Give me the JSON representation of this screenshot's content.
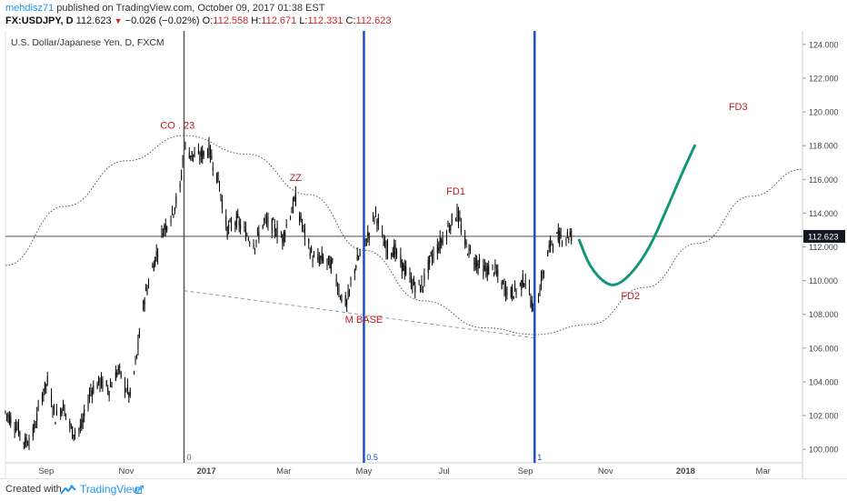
{
  "header": {
    "author": "mehdisz71",
    "published_text": "published on TradingView.com, October 09, 2017 01:38 EST",
    "symbol": "FX:USDJPY, D",
    "last_price": "112.623",
    "down_icon": "triangle-down-icon",
    "change": "−0.026 (−0.02%)",
    "ohlc": [
      {
        "label": "O:",
        "value": "112.558"
      },
      {
        "label": "H:",
        "value": "112.671"
      },
      {
        "label": "L:",
        "value": "112.331"
      },
      {
        "label": "C:",
        "value": "112.623"
      }
    ]
  },
  "footer": {
    "created_with": "Created with",
    "logo_icon": "tradingview-logo-icon",
    "brand": "TradingView",
    "external_icon": "external-link-icon"
  },
  "colors": {
    "candle": "#000000",
    "vline_blue": "#1e50c8",
    "vline_gray": "#555555",
    "annotation": "#b71c1c",
    "projection": "#14967a",
    "author": "#2196f3",
    "last_price_bg": "#131722"
  },
  "chart_data": {
    "type": "candlestick",
    "title": "U.S. Dollar/Japanese Yen, D, FXCM",
    "x_axis": {
      "tick_labels": [
        "Sep",
        "Nov",
        "2017",
        "Mar",
        "May",
        "Jul",
        "Sep",
        "Nov",
        "2018",
        "Mar"
      ],
      "range": [
        "2016-08-01",
        "2018-03-31"
      ]
    },
    "y_axis": {
      "range": [
        99.2,
        124.8
      ],
      "ticks": [
        100,
        102,
        104,
        106,
        108,
        110,
        112,
        114,
        116,
        118,
        120,
        122,
        124
      ],
      "tick_labels": [
        "100.000",
        "102.000",
        "104.000",
        "106.000",
        "108.000",
        "110.000",
        "112.000",
        "114.000",
        "116.000",
        "118.000",
        "120.000",
        "122.000",
        "124.000"
      ],
      "position": "right"
    },
    "last_price": 112.623,
    "price_path": [
      [
        "2016-08-01",
        102.2
      ],
      [
        "2016-08-05",
        101.8
      ],
      [
        "2016-08-10",
        101.3
      ],
      [
        "2016-08-16",
        100.4
      ],
      [
        "2016-08-22",
        100.9
      ],
      [
        "2016-08-29",
        103.2
      ],
      [
        "2016-09-02",
        104.0
      ],
      [
        "2016-09-08",
        101.9
      ],
      [
        "2016-09-14",
        102.6
      ],
      [
        "2016-09-21",
        101.0
      ],
      [
        "2016-09-28",
        101.3
      ],
      [
        "2016-10-05",
        103.5
      ],
      [
        "2016-10-12",
        104.0
      ],
      [
        "2016-10-19",
        103.6
      ],
      [
        "2016-10-26",
        104.7
      ],
      [
        "2016-11-04",
        103.1
      ],
      [
        "2016-11-09",
        105.5
      ],
      [
        "2016-11-15",
        109.0
      ],
      [
        "2016-11-22",
        111.0
      ],
      [
        "2016-11-29",
        113.0
      ],
      [
        "2016-12-06",
        114.0
      ],
      [
        "2016-12-12",
        115.4
      ],
      [
        "2016-12-15",
        118.0
      ],
      [
        "2016-12-20",
        117.5
      ],
      [
        "2016-12-26",
        117.3
      ],
      [
        "2017-01-03",
        117.8
      ],
      [
        "2017-01-10",
        116.0
      ],
      [
        "2017-01-17",
        113.0
      ],
      [
        "2017-01-24",
        113.6
      ],
      [
        "2017-01-31",
        112.8
      ],
      [
        "2017-02-07",
        112.2
      ],
      [
        "2017-02-14",
        113.5
      ],
      [
        "2017-02-21",
        113.2
      ],
      [
        "2017-02-28",
        112.5
      ],
      [
        "2017-03-06",
        114.0
      ],
      [
        "2017-03-10",
        114.8
      ],
      [
        "2017-03-17",
        112.7
      ],
      [
        "2017-03-24",
        111.2
      ],
      [
        "2017-03-31",
        111.3
      ],
      [
        "2017-04-07",
        110.9
      ],
      [
        "2017-04-13",
        109.2
      ],
      [
        "2017-04-18",
        108.6
      ],
      [
        "2017-04-25",
        111.0
      ],
      [
        "2017-05-02",
        112.2
      ],
      [
        "2017-05-10",
        114.0
      ],
      [
        "2017-05-17",
        112.0
      ],
      [
        "2017-05-24",
        111.8
      ],
      [
        "2017-05-31",
        110.8
      ],
      [
        "2017-06-07",
        109.8
      ],
      [
        "2017-06-14",
        109.6
      ],
      [
        "2017-06-21",
        111.3
      ],
      [
        "2017-06-28",
        112.2
      ],
      [
        "2017-07-06",
        113.4
      ],
      [
        "2017-07-11",
        114.0
      ],
      [
        "2017-07-18",
        112.0
      ],
      [
        "2017-07-25",
        111.2
      ],
      [
        "2017-08-01",
        110.6
      ],
      [
        "2017-08-08",
        110.7
      ],
      [
        "2017-08-14",
        109.8
      ],
      [
        "2017-08-21",
        109.2
      ],
      [
        "2017-08-28",
        109.7
      ],
      [
        "2017-09-01",
        110.2
      ],
      [
        "2017-09-08",
        107.9
      ],
      [
        "2017-09-14",
        110.3
      ],
      [
        "2017-09-21",
        112.4
      ],
      [
        "2017-09-28",
        112.6
      ],
      [
        "2017-10-04",
        112.7
      ],
      [
        "2017-10-09",
        112.62
      ]
    ],
    "vertical_lines": [
      {
        "date": "2016-12-15",
        "label": "0",
        "color": "gray"
      },
      {
        "date": "2017-05-01",
        "label": "0.5",
        "color": "blue"
      },
      {
        "date": "2017-09-08",
        "label": "1",
        "color": "blue"
      }
    ],
    "dotted_curve": [
      [
        "2016-08-01",
        110.9
      ],
      [
        "2016-09-15",
        114.4
      ],
      [
        "2016-11-01",
        117.1
      ],
      [
        "2016-12-15",
        118.6
      ],
      [
        "2017-02-01",
        117.5
      ],
      [
        "2017-03-20",
        115.1
      ],
      [
        "2017-05-01",
        111.8
      ],
      [
        "2017-06-15",
        108.8
      ],
      [
        "2017-08-01",
        107.2
      ],
      [
        "2017-09-08",
        106.8
      ],
      [
        "2017-10-20",
        107.4
      ],
      [
        "2017-12-01",
        109.6
      ],
      [
        "2018-01-10",
        112.2
      ],
      [
        "2018-02-20",
        115.0
      ],
      [
        "2018-03-31",
        116.6
      ]
    ],
    "dashed_line": [
      [
        "2016-12-15",
        109.4
      ],
      [
        "2017-09-08",
        106.6
      ]
    ],
    "projection_curve": [
      [
        "2017-10-12",
        112.4
      ],
      [
        "2017-10-20",
        110.8
      ],
      [
        "2017-11-01",
        109.8
      ],
      [
        "2017-11-10",
        109.7
      ],
      [
        "2017-11-22",
        110.5
      ],
      [
        "2017-12-05",
        112.0
      ],
      [
        "2017-12-18",
        114.3
      ],
      [
        "2017-12-30",
        116.5
      ],
      [
        "2018-01-08",
        118.0
      ]
    ],
    "annotations": [
      {
        "text": "CO . 23",
        "date": "2016-12-10",
        "y": 119.0
      },
      {
        "text": "ZZ",
        "date": "2017-03-10",
        "y": 115.9
      },
      {
        "text": "FD1",
        "date": "2017-07-10",
        "y": 115.1
      },
      {
        "text": "M BASE",
        "date": "2017-05-01",
        "y": 107.5
      },
      {
        "text": "FD2",
        "date": "2017-11-20",
        "y": 108.9
      },
      {
        "text": "FD3",
        "date": "2018-02-10",
        "y": 120.1
      }
    ]
  }
}
